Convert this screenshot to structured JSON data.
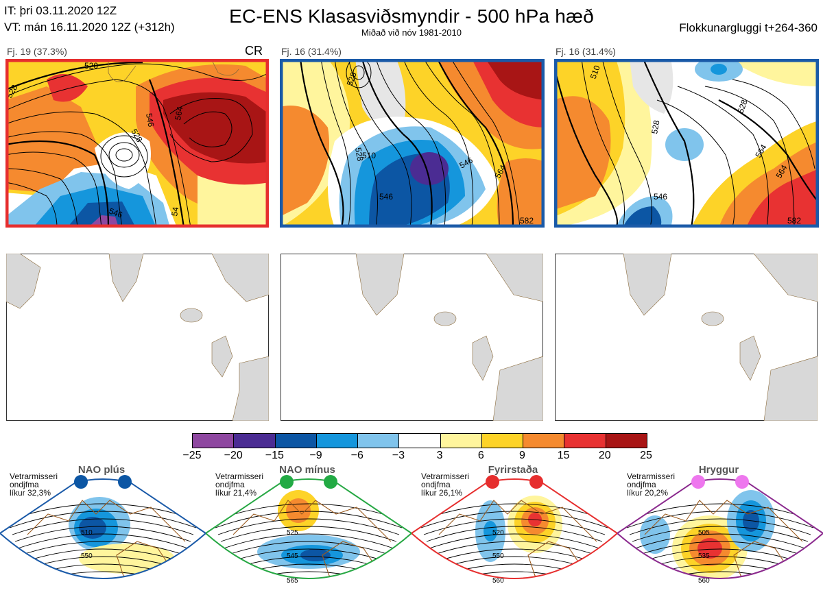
{
  "header": {
    "it": "IT: þri 03.11.2020 12Z",
    "vt": "VT: mán 16.11.2020 12Z  (+312h)",
    "title": "EC-ENS Klasasviðsmyndir - 500 hPa hæð",
    "subtitle": "Miðað við nóv 1981-2010",
    "window": "Flokkunargluggi t+264-360"
  },
  "panels": [
    {
      "label": "Fj. 19 (37.3%)",
      "tag": "CR",
      "border": "#e62e2e",
      "contours": [
        "520",
        "546",
        "528",
        "564",
        "546",
        "54",
        "528"
      ]
    },
    {
      "label": "Fj. 16 (31.4%)",
      "tag": "",
      "border": "#1a5aa8",
      "contours": [
        "528",
        "510",
        "528",
        "546",
        "546",
        "564",
        "582"
      ]
    },
    {
      "label": "Fj. 16 (31.4%)",
      "tag": "",
      "border": "#1a5aa8",
      "contours": [
        "510",
        "528",
        "528",
        "546",
        "564",
        "564",
        "582"
      ]
    }
  ],
  "colorbar": {
    "ticks": [
      "−25",
      "−20",
      "−15",
      "−9",
      "−6",
      "−3",
      "3",
      "6",
      "9",
      "15",
      "20",
      "25"
    ],
    "colors": [
      "#8e47a0",
      "#4b2c93",
      "#0c56a4",
      "#1596dc",
      "#80c4ec",
      "#ffffff",
      "#fff59d",
      "#fdd328",
      "#f58a2f",
      "#e83232",
      "#a81515"
    ]
  },
  "regimes": [
    {
      "title": "NAO plús",
      "line1": "Vetrarmisseri",
      "line2": "ondjfma",
      "line3": "líkur 32,3%",
      "color": "#1a5aa8",
      "dot": "#0c56a4",
      "c1": "510",
      "c2": "550",
      "c3": ""
    },
    {
      "title": "NAO mínus",
      "line1": "Vetrarmisseri",
      "line2": "ondjfma",
      "line3": "líkur 21,4%",
      "color": "#27a844",
      "dot": "#22aa44",
      "c1": "525",
      "c2": "545",
      "c3": "565"
    },
    {
      "title": "Fyrirstaða",
      "line1": "Vetrarmisseri",
      "line2": "ondjfma",
      "line3": "líkur 26,1%",
      "color": "#e62e2e",
      "dot": "#e62e2e",
      "c1": "520",
      "c2": "550",
      "c3": "560"
    },
    {
      "title": "Hryggur",
      "line1": "Vetrarmisseri",
      "line2": "ondjfma",
      "line3": "líkur 20,2%",
      "color": "#8b2a8e",
      "dot": "#ee77ee",
      "c1": "505",
      "c2": "535",
      "c3": "560"
    }
  ]
}
